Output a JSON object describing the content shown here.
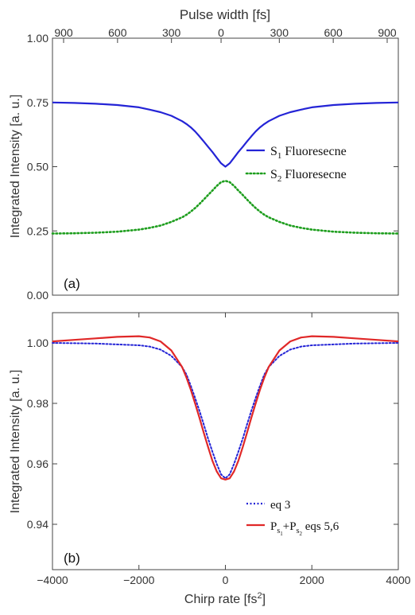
{
  "chart_data": [
    {
      "type": "line",
      "panel_label": "(a)",
      "ylabel": "Integrated Intensity [a. u.]",
      "top_xlabel": "Pulse width [fs]",
      "top_ticks": [
        "900",
        "600",
        "300",
        "0",
        "300",
        "600",
        "900"
      ],
      "xlim": [
        -4000,
        4000
      ],
      "ylim": [
        0,
        1.0
      ],
      "yticks": [
        "0.00",
        "0.25",
        "0.50",
        "0.75",
        "1.00"
      ],
      "grid": false,
      "legend_position": "right",
      "series": [
        {
          "name": "Fluoresecne",
          "name_prefix": "S",
          "name_subscript": "1",
          "style": "solid",
          "color": "#2424d6",
          "x": [
            -4000,
            -3500,
            -3000,
            -2500,
            -2000,
            -1750,
            -1500,
            -1250,
            -1000,
            -900,
            -800,
            -700,
            -600,
            -500,
            -400,
            -300,
            -200,
            -100,
            0,
            100,
            200,
            300,
            400,
            500,
            600,
            700,
            800,
            900,
            1000,
            1250,
            1500,
            1750,
            2000,
            2500,
            3000,
            3500,
            4000
          ],
          "values": [
            0.75,
            0.748,
            0.745,
            0.74,
            0.731,
            0.722,
            0.712,
            0.698,
            0.677,
            0.666,
            0.653,
            0.637,
            0.618,
            0.598,
            0.577,
            0.557,
            0.535,
            0.513,
            0.5,
            0.513,
            0.535,
            0.557,
            0.577,
            0.598,
            0.618,
            0.637,
            0.653,
            0.666,
            0.677,
            0.698,
            0.712,
            0.722,
            0.731,
            0.74,
            0.745,
            0.748,
            0.75
          ]
        },
        {
          "name": "Fluoresecne",
          "name_prefix": "S",
          "name_subscript": "2",
          "style": "dotted",
          "color": "#1e9e1e",
          "x": [
            -4000,
            -3500,
            -3000,
            -2500,
            -2000,
            -1750,
            -1500,
            -1250,
            -1000,
            -900,
            -800,
            -700,
            -600,
            -500,
            -400,
            -300,
            -200,
            -100,
            0,
            100,
            200,
            300,
            400,
            500,
            600,
            700,
            800,
            900,
            1000,
            1250,
            1500,
            1750,
            2000,
            2500,
            3000,
            3500,
            4000
          ],
          "values": [
            0.24,
            0.241,
            0.243,
            0.247,
            0.255,
            0.262,
            0.271,
            0.285,
            0.303,
            0.313,
            0.325,
            0.339,
            0.355,
            0.372,
            0.39,
            0.407,
            0.425,
            0.44,
            0.445,
            0.44,
            0.425,
            0.407,
            0.39,
            0.372,
            0.355,
            0.339,
            0.325,
            0.313,
            0.303,
            0.285,
            0.271,
            0.262,
            0.255,
            0.247,
            0.243,
            0.241,
            0.24
          ]
        }
      ]
    },
    {
      "type": "line",
      "panel_label": "(b)",
      "xlabel": "Chirp rate [fs",
      "xlabel_superscript": "2",
      "xlabel_suffix": "]",
      "ylabel": "Integrated Intensity [a. u.]",
      "xlim": [
        -4000,
        4000
      ],
      "ylim": [
        0.925,
        1.01
      ],
      "xticks": [
        "−4000",
        "−2000",
        "0",
        "2000",
        "4000"
      ],
      "yticks": [
        "0.94",
        "0.96",
        "0.98",
        "1.00"
      ],
      "grid": false,
      "legend_position": "lower-right",
      "series": [
        {
          "name": "eq 3",
          "style": "dotted",
          "color": "#2424d6",
          "x": [
            -4000,
            -3500,
            -3000,
            -2500,
            -2000,
            -1750,
            -1500,
            -1250,
            -1000,
            -900,
            -800,
            -700,
            -600,
            -500,
            -400,
            -300,
            -200,
            -100,
            0,
            100,
            200,
            300,
            400,
            500,
            600,
            700,
            800,
            900,
            1000,
            1250,
            1500,
            1750,
            2000,
            2500,
            3000,
            3500,
            4000
          ],
          "values": [
            1.0,
            0.9999,
            0.9998,
            0.9995,
            0.9992,
            0.9988,
            0.9978,
            0.9957,
            0.992,
            0.9895,
            0.9858,
            0.9818,
            0.9775,
            0.973,
            0.9683,
            0.964,
            0.96,
            0.9565,
            0.9552,
            0.9565,
            0.96,
            0.964,
            0.9683,
            0.973,
            0.9775,
            0.9818,
            0.9858,
            0.9895,
            0.992,
            0.9957,
            0.9978,
            0.9988,
            0.9992,
            0.9995,
            0.9998,
            0.9999,
            1.0
          ]
        },
        {
          "name_p1": "P",
          "name_s1": "s",
          "name_ss1": "1",
          "name_join": "+P",
          "name_s2": "s",
          "name_ss2": "2",
          "name_tail": " eqs 5,6",
          "style": "solid",
          "color": "#e02828",
          "x": [
            -4000,
            -3500,
            -3000,
            -2500,
            -2000,
            -1750,
            -1500,
            -1250,
            -1000,
            -900,
            -800,
            -700,
            -600,
            -500,
            -400,
            -300,
            -200,
            -100,
            0,
            100,
            200,
            300,
            400,
            500,
            600,
            700,
            800,
            900,
            1000,
            1250,
            1500,
            1750,
            2000,
            2500,
            3000,
            3500,
            4000
          ],
          "values": [
            1.0005,
            1.001,
            1.0015,
            1.002,
            1.0022,
            1.0018,
            1.0005,
            0.9975,
            0.992,
            0.9885,
            0.9845,
            0.98,
            0.9752,
            0.9703,
            0.9655,
            0.961,
            0.9575,
            0.9552,
            0.9548,
            0.9552,
            0.9575,
            0.961,
            0.9655,
            0.9703,
            0.9752,
            0.98,
            0.9845,
            0.9885,
            0.992,
            0.9975,
            1.0005,
            1.0018,
            1.0022,
            1.002,
            1.0015,
            1.001,
            1.0005
          ]
        }
      ]
    }
  ]
}
